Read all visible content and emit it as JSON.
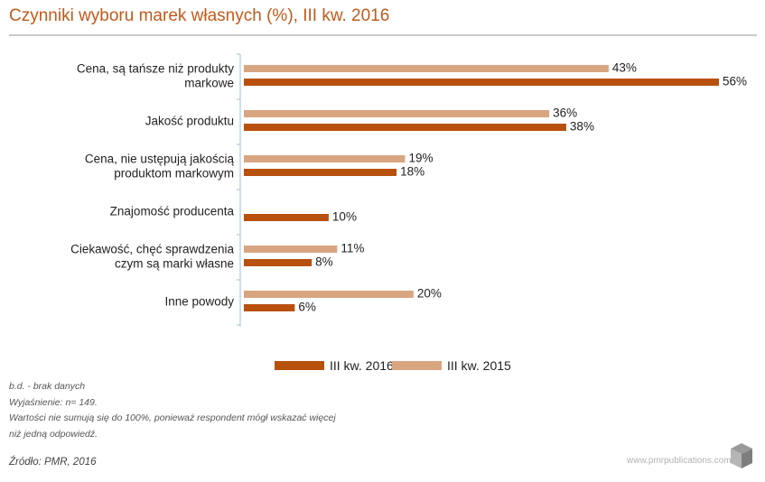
{
  "title": "Czynniki wyboru marek własnych (%), III kw. 2016",
  "colors": {
    "series_2016": "#b8510e",
    "series_2015": "#d8a581",
    "title": "#c05a1a",
    "axis": "#9dbfdc"
  },
  "chart_data": {
    "type": "bar",
    "orientation": "horizontal",
    "title": "Czynniki wyboru marek własnych (%), III kw. 2016",
    "xlim": [
      0,
      60
    ],
    "value_suffix": "%",
    "categories": [
      [
        "Cena, są tańsze niż produkty",
        "markowe"
      ],
      [
        "Jakość produktu"
      ],
      [
        "Cena, nie ustępują jakością",
        "produktom markowym"
      ],
      [
        "Znajomość producenta"
      ],
      [
        "Ciekawość, chęć sprawdzenia",
        "czym są marki własne"
      ],
      [
        "Inne powody"
      ]
    ],
    "series": [
      {
        "name": "III kw. 2015",
        "color": "#d8a581",
        "values": [
          43,
          36,
          19,
          null,
          11,
          20
        ]
      },
      {
        "name": "III kw. 2016",
        "color": "#b8510e",
        "values": [
          56,
          38,
          18,
          10,
          8,
          6
        ]
      }
    ],
    "legend_order": [
      "III kw. 2016",
      "III kw. 2015"
    ],
    "legend_position": "bottom"
  },
  "notes": [
    "b.d. - brak danych",
    "Wyjaśnienie: n= 149.",
    "Wartości nie sumują się do 100%, ponieważ respondent mógł wskazać więcej",
    "niż jedną odpowiedź."
  ],
  "source": "Źródło: PMR, 2016",
  "footer_url": "www.pmrpublications.com",
  "logo_icon": "cube-logo-icon"
}
